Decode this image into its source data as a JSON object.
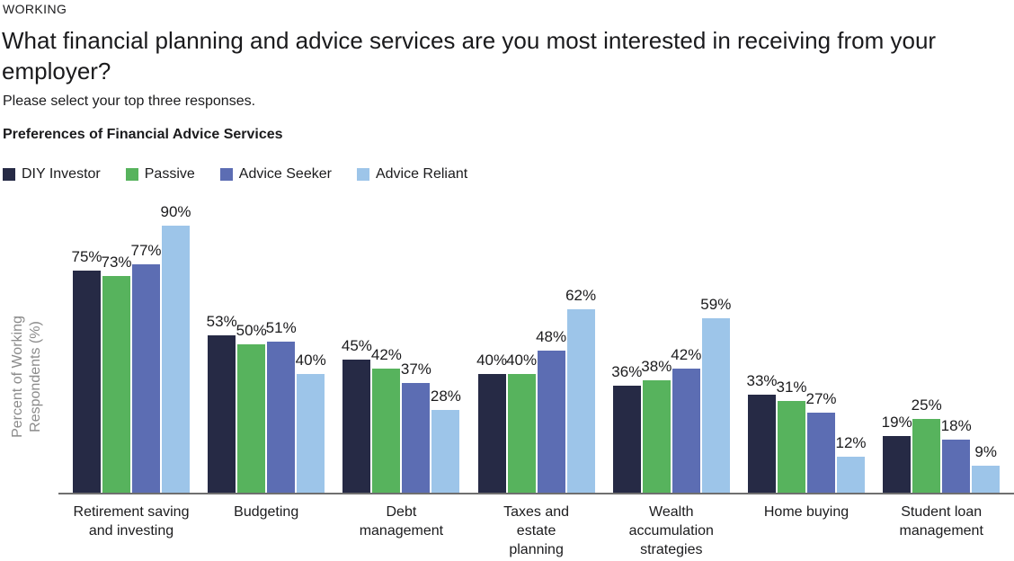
{
  "header": {
    "eyebrow": "WORKING",
    "title": "What financial planning and advice services are you most interested in receiving from your employer?",
    "instruction": "Please select your top three responses.",
    "chart_heading": "Preferences of Financial Advice Services"
  },
  "chart_data": {
    "type": "bar",
    "title": "Preferences of Financial Advice Services",
    "ylabel": "Percent of Working Respondents (%)",
    "ylabel_lines": [
      "Percent of Working",
      "Respondents (%)"
    ],
    "value_suffix": "%",
    "ylim": [
      0,
      100
    ],
    "grid": false,
    "legend_position": "top-left",
    "categories": [
      "Retirement saving and investing",
      "Budgeting",
      "Debt management",
      "Taxes and estate planning",
      "Wealth accumulation strategies",
      "Home buying",
      "Student loan management"
    ],
    "categories_multiline": [
      [
        "Retirement saving",
        "and investing"
      ],
      [
        "Budgeting"
      ],
      [
        "Debt",
        "management"
      ],
      [
        "Taxes and",
        "estate",
        "planning"
      ],
      [
        "Wealth",
        "accumulation",
        "strategies"
      ],
      [
        "Home buying"
      ],
      [
        "Student loan",
        "management"
      ]
    ],
    "series": [
      {
        "name": "DIY Investor",
        "color": "#262A45",
        "values": [
          75,
          53,
          45,
          40,
          36,
          33,
          19
        ]
      },
      {
        "name": "Passive",
        "color": "#57B35D",
        "values": [
          73,
          50,
          42,
          40,
          38,
          31,
          25
        ]
      },
      {
        "name": "Advice Seeker",
        "color": "#5C6DB3",
        "values": [
          77,
          51,
          37,
          48,
          42,
          27,
          18
        ]
      },
      {
        "name": "Advice Reliant",
        "color": "#9DC5E9",
        "values": [
          90,
          40,
          28,
          62,
          59,
          12,
          9
        ]
      }
    ],
    "axis_color": "#6F6F6F",
    "label_color": "#1B1B1D",
    "ylabel_color": "#8B8B8B"
  }
}
